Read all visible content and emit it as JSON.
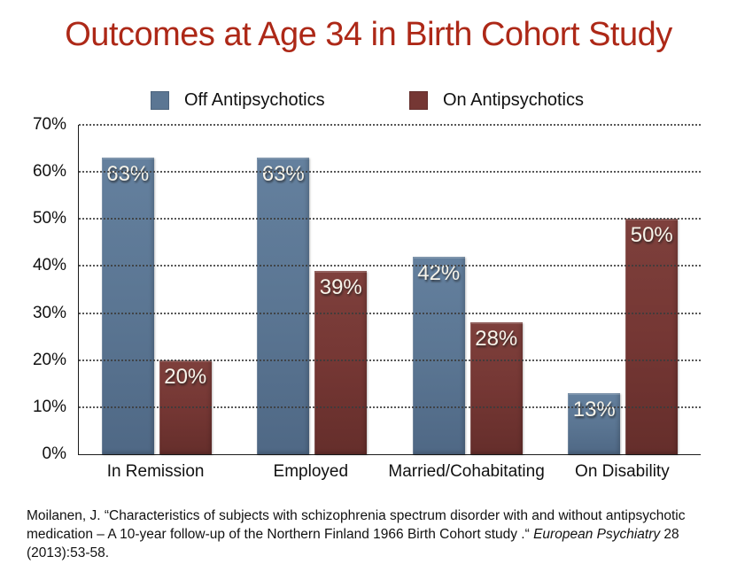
{
  "slide": {
    "title": "Outcomes at Age 34 in Birth Cohort Study",
    "title_color": "#ad2817",
    "background": "#ffffff"
  },
  "legend": {
    "items": [
      {
        "label": "Off Antipsychotics",
        "color": "#5b7693"
      },
      {
        "label": "On Antipsychotics",
        "color": "#753734"
      }
    ]
  },
  "chart_data": {
    "type": "bar",
    "title": "Outcomes at Age 34 in Birth Cohort Study",
    "categories": [
      "In Remission",
      "Employed",
      "Married/Cohabitating",
      "On Disability"
    ],
    "series": [
      {
        "name": "Off Antipsychotics",
        "color": "#5b7693",
        "color_light": "#64809e",
        "color_dark": "#4f6885",
        "values": [
          63,
          63,
          42,
          13
        ],
        "labels": [
          "63%",
          "63%",
          "42%",
          "13%"
        ]
      },
      {
        "name": "On Antipsychotics",
        "color": "#753734",
        "color_light": "#7e403c",
        "color_dark": "#652e2b",
        "values": [
          20,
          39,
          28,
          50
        ],
        "labels": [
          "20%",
          "39%",
          "28%",
          "50%"
        ]
      }
    ],
    "xlabel": "",
    "ylabel": "",
    "ylim": [
      0,
      70
    ],
    "yticks": [
      0,
      10,
      20,
      30,
      40,
      50,
      60,
      70
    ],
    "ytick_labels": [
      "0%",
      "10%",
      "20%",
      "30%",
      "40%",
      "50%",
      "60%",
      "70%"
    ],
    "grid": "horizontal-dotted",
    "legend_position": "top"
  },
  "citation": {
    "before_italic": "Moilanen, J. “Characteristics of subjects with schizophrenia spectrum disorder with and without antipsychotic medication – A 10-year follow-up of the Northern Finland 1966 Birth Cohort study .“ ",
    "italic": "European Psychiatry",
    "after_italic": " 28 (2013):53-58."
  }
}
